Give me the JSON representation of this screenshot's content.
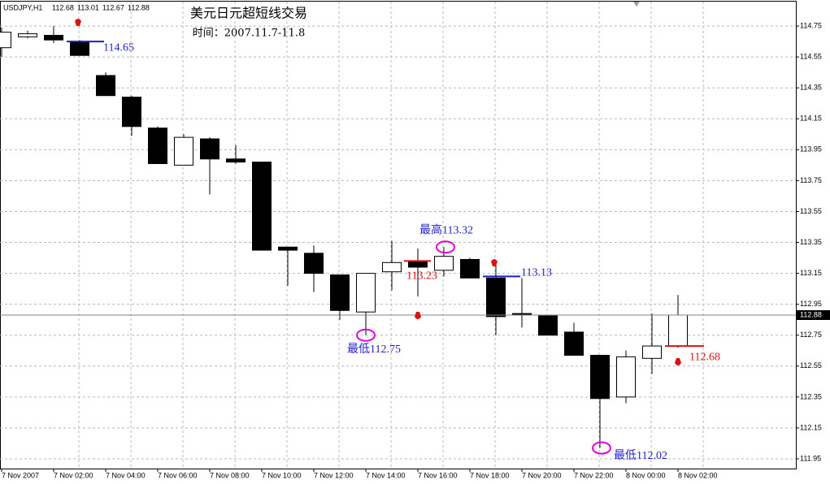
{
  "chart_data": {
    "type": "candlestick",
    "symbol": "USDJPY,H1",
    "title": "美元日元超短线交易",
    "subtitle": "时间：2007.11.7-11.8",
    "categories": [
      "7 Nov 2007",
      null,
      "7 Nov 02:00",
      null,
      "7 Nov 04:00",
      null,
      "7 Nov 06:00",
      null,
      "7 Nov 08:00",
      null,
      "7 Nov 10:00",
      null,
      "7 Nov 12:00",
      null,
      "7 Nov 14:00",
      null,
      "7 Nov 16:00",
      null,
      "7 Nov 18:00",
      null,
      "7 Nov 20:00",
      null,
      "7 Nov 22:00",
      null,
      "8 Nov 00:00",
      null,
      "8 Nov 02:00"
    ],
    "open": [
      114.61,
      114.68,
      114.69,
      114.65,
      114.43,
      114.29,
      114.09,
      113.85,
      114.02,
      113.89,
      113.87,
      113.32,
      113.28,
      113.14,
      112.9,
      113.16,
      113.23,
      113.17,
      113.24,
      113.12,
      112.89,
      112.88,
      112.77,
      112.62,
      112.35,
      112.6,
      112.68
    ],
    "high": [
      114.74,
      114.72,
      114.75,
      114.66,
      114.45,
      114.3,
      114.1,
      114.05,
      114.03,
      113.98,
      113.87,
      113.32,
      113.33,
      113.14,
      113.15,
      113.36,
      113.31,
      113.32,
      113.25,
      113.22,
      113.12,
      112.88,
      112.83,
      112.62,
      112.65,
      112.89,
      113.01
    ],
    "low": [
      114.55,
      114.67,
      114.64,
      114.56,
      114.3,
      114.04,
      113.86,
      113.85,
      113.66,
      113.86,
      113.3,
      113.07,
      113.03,
      112.85,
      112.75,
      113.04,
      113.0,
      113.13,
      113.12,
      112.75,
      112.8,
      112.75,
      112.62,
      112.02,
      112.31,
      112.5,
      112.67
    ],
    "close": [
      114.71,
      114.7,
      114.66,
      114.56,
      114.3,
      114.1,
      113.86,
      114.03,
      113.89,
      113.87,
      113.3,
      113.3,
      113.15,
      112.91,
      113.15,
      113.22,
      113.19,
      113.26,
      113.12,
      112.87,
      112.88,
      112.75,
      112.62,
      112.34,
      112.61,
      112.68,
      112.88
    ],
    "up_color": "#ffffff",
    "down_color": "#000000",
    "ylim": [
      111.887,
      114.908
    ],
    "yticks": [
      114.75,
      114.55,
      114.35,
      114.15,
      113.95,
      113.75,
      113.55,
      113.35,
      113.15,
      112.95,
      112.75,
      112.55,
      112.35,
      112.15,
      111.95
    ],
    "grid": true,
    "annotations": [
      {
        "value": 114.65,
        "label": "114.65",
        "color": "#1f1fc8"
      },
      {
        "value": 113.32,
        "label": "最高113.32",
        "color": "#1f1fc8"
      },
      {
        "value": 113.23,
        "label": "113.23",
        "color": "#e01010"
      },
      {
        "value": 113.13,
        "label": "113.13",
        "color": "#1f1fc8"
      },
      {
        "value": 112.75,
        "label": "最低112.75",
        "color": "#1f1fc8"
      },
      {
        "value": 112.02,
        "label": "最低112.02",
        "color": "#1f1fc8"
      },
      {
        "value": 112.68,
        "label": "112.68",
        "color": "#e01010"
      }
    ]
  }
}
